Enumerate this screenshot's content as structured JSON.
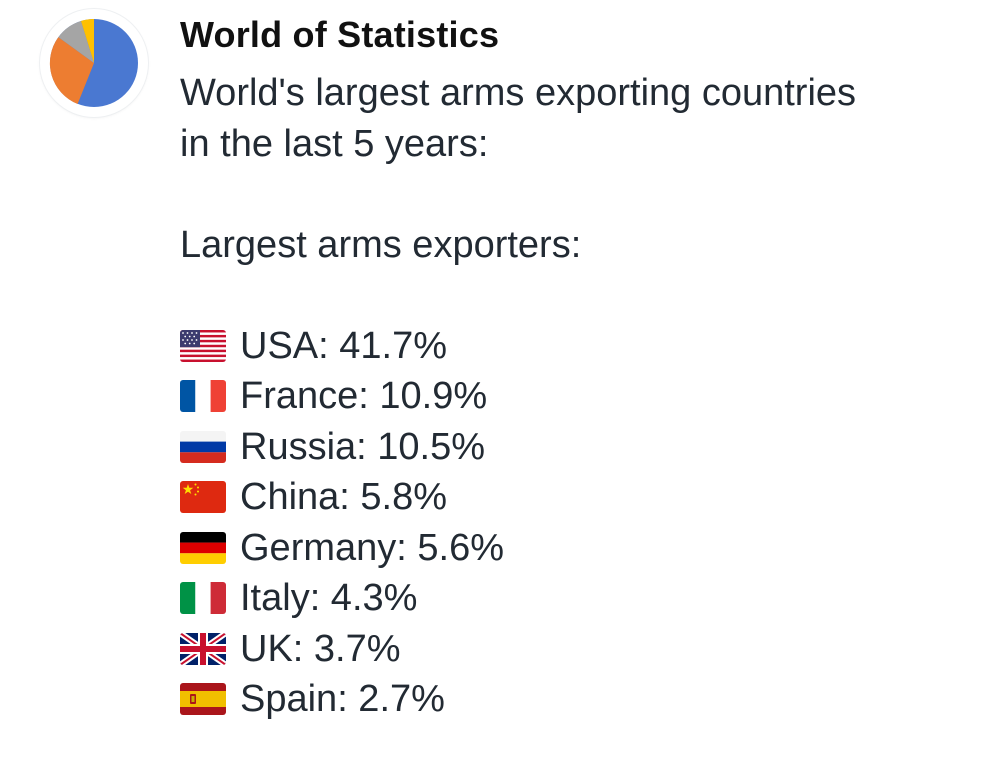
{
  "channel": {
    "name": "World of Statistics",
    "avatar_icon": "pie-chart-icon",
    "avatar_colors": [
      "#4a78d1",
      "#ed7d31",
      "#a5a5a5",
      "#ffc000"
    ]
  },
  "message": {
    "intro_line1": "World's largest arms exporting countries",
    "intro_line2": "in the last 5 years:",
    "heading": "Largest arms exporters:",
    "items": [
      {
        "flag": "us-flag-icon",
        "text": "USA: 41.7%"
      },
      {
        "flag": "france-flag-icon",
        "text": "France: 10.9%"
      },
      {
        "flag": "russia-flag-icon",
        "text": "Russia: 10.5%"
      },
      {
        "flag": "china-flag-icon",
        "text": "China: 5.8%"
      },
      {
        "flag": "germany-flag-icon",
        "text": "Germany: 5.6%"
      },
      {
        "flag": "italy-flag-icon",
        "text": "Italy: 4.3%"
      },
      {
        "flag": "uk-flag-icon",
        "text": "UK: 3.7%"
      },
      {
        "flag": "spain-flag-icon",
        "text": "Spain: 2.7%"
      }
    ]
  }
}
